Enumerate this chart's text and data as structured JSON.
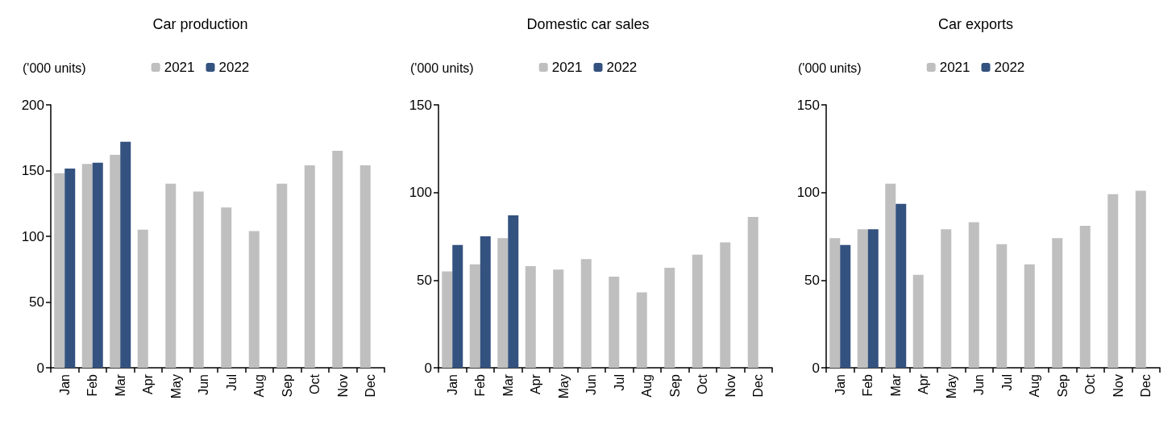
{
  "chart_data": [
    {
      "type": "bar",
      "title": "Car production",
      "ylabel": "('000 units)",
      "categories": [
        "Jan",
        "Feb",
        "Mar",
        "Apr",
        "May",
        "Jun",
        "Jul",
        "Aug",
        "Sep",
        "Oct",
        "Nov",
        "Dec"
      ],
      "series": [
        {
          "name": "2021",
          "color": "#bfbfbf",
          "values": [
            148,
            155,
            162,
            105,
            140,
            134,
            122,
            104,
            140,
            154,
            165,
            154
          ]
        },
        {
          "name": "2022",
          "color": "#34527f",
          "values": [
            151.5,
            156,
            172,
            null,
            null,
            null,
            null,
            null,
            null,
            null,
            null,
            null
          ]
        }
      ],
      "ylim": [
        0,
        200
      ],
      "yticks": [
        0,
        50,
        100,
        150,
        200
      ],
      "grid": false,
      "legend": "top"
    },
    {
      "type": "bar",
      "title": "Domestic car sales",
      "ylabel": "('000 units)",
      "categories": [
        "Jan",
        "Feb",
        "Mar",
        "Apr",
        "May",
        "Jun",
        "Jul",
        "Aug",
        "Sep",
        "Oct",
        "Nov",
        "Dec"
      ],
      "series": [
        {
          "name": "2021",
          "color": "#bfbfbf",
          "values": [
            55,
            59,
            74,
            58,
            56,
            62,
            52,
            43,
            57,
            64.5,
            71.5,
            86
          ]
        },
        {
          "name": "2022",
          "color": "#34527f",
          "values": [
            70,
            75,
            87,
            null,
            null,
            null,
            null,
            null,
            null,
            null,
            null,
            null
          ]
        }
      ],
      "ylim": [
        0,
        150
      ],
      "yticks": [
        0,
        50,
        100,
        150
      ],
      "grid": false,
      "legend": "top"
    },
    {
      "type": "bar",
      "title": "Car exports",
      "ylabel": "('000 units)",
      "categories": [
        "Jan",
        "Feb",
        "Mar",
        "Apr",
        "May",
        "Jun",
        "Jul",
        "Aug",
        "Sep",
        "Oct",
        "Nov",
        "Dec"
      ],
      "series": [
        {
          "name": "2021",
          "color": "#bfbfbf",
          "values": [
            74,
            79,
            105,
            53,
            79,
            83,
            70.5,
            59,
            74,
            81,
            99,
            101
          ]
        },
        {
          "name": "2022",
          "color": "#34527f",
          "values": [
            70,
            79,
            93.5,
            null,
            null,
            null,
            null,
            null,
            null,
            null,
            null,
            null
          ]
        }
      ],
      "ylim": [
        0,
        150
      ],
      "yticks": [
        0,
        50,
        100,
        150
      ],
      "grid": false,
      "legend": "top"
    }
  ]
}
